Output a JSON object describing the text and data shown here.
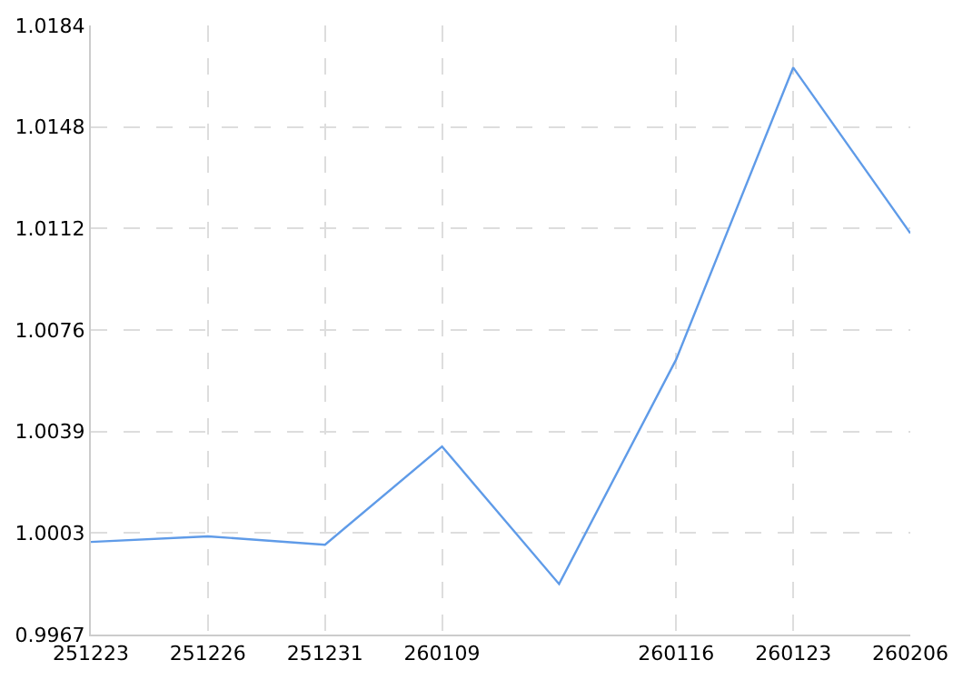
{
  "chart_data": {
    "type": "line",
    "categories": [
      "251223",
      "251226",
      "251231",
      "260109",
      null,
      "260116",
      "260123",
      "260206"
    ],
    "series": [
      {
        "color": "#5f9be8",
        "values": [
          1.0,
          1.0002,
          0.9999,
          1.0034,
          0.9985,
          1.0065,
          1.0169,
          1.011
        ]
      }
    ],
    "ylim": [
      0.9967,
      1.0184
    ],
    "yticks": [
      {
        "value": 0.9967,
        "label": "0.9967"
      },
      {
        "value": 1.00032,
        "label": "1.0003"
      },
      {
        "value": 1.00393,
        "label": "1.0039"
      },
      {
        "value": 1.00755,
        "label": "1.0076"
      },
      {
        "value": 1.01117,
        "label": "1.0112"
      },
      {
        "value": 1.01478,
        "label": "1.0148"
      },
      {
        "value": 1.0184,
        "label": "1.0184"
      }
    ],
    "grid": true,
    "line_style": "solid",
    "marker": "none",
    "legend": false
  }
}
